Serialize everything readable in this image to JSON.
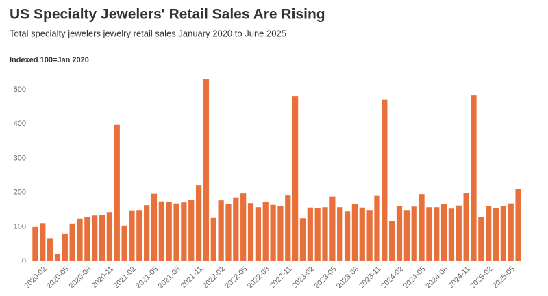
{
  "chart_data": {
    "type": "bar",
    "title": "US Specialty Jewelers' Retail Sales Are Rising",
    "subtitle": "Total specialty jewelers jewelry retail sales January 2020 to June 2025",
    "y_label": "Indexed 100=Jan 2020",
    "categories": [
      null,
      "2020-02",
      null,
      null,
      "2020-05",
      null,
      null,
      "2020-08",
      null,
      null,
      "2020-11",
      null,
      null,
      "2021-02",
      null,
      null,
      "2021-05",
      null,
      null,
      "2021-08",
      null,
      null,
      "2021-11",
      null,
      null,
      "2022-02",
      null,
      null,
      "2022-05",
      null,
      null,
      "2022-08",
      null,
      null,
      "2022-11",
      null,
      null,
      "2023-02",
      null,
      null,
      "2023-05",
      null,
      null,
      "2023-08",
      null,
      null,
      "2023-11",
      null,
      null,
      "2024-02",
      null,
      null,
      "2024-05",
      null,
      null,
      "2024-08",
      null,
      null,
      "2024-11",
      null,
      null,
      "2025-02",
      null,
      null,
      "2025-05",
      null
    ],
    "values": [
      100,
      111,
      67,
      21,
      80,
      110,
      124,
      129,
      133,
      135,
      143,
      397,
      104,
      148,
      149,
      163,
      196,
      174,
      173,
      168,
      171,
      179,
      221,
      530,
      126,
      177,
      167,
      186,
      197,
      169,
      157,
      172,
      164,
      160,
      193,
      480,
      125,
      156,
      154,
      157,
      188,
      157,
      145,
      166,
      156,
      149,
      192,
      471,
      116,
      161,
      149,
      159,
      195,
      157,
      157,
      167,
      153,
      162,
      198,
      484,
      128,
      161,
      155,
      160,
      168,
      210
    ],
    "color": "#e8703a",
    "ylim": [
      0,
      550
    ],
    "yticks": [
      0,
      100,
      200,
      300,
      400,
      500
    ],
    "grid": false
  }
}
